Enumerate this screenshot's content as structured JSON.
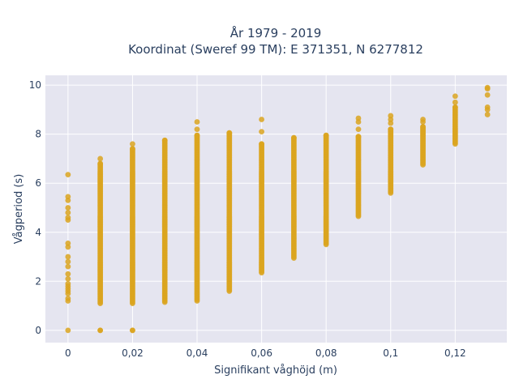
{
  "chart_data": {
    "type": "scatter",
    "title_line1": "År 1979 - 2019",
    "title_line2": "Koordinat (Sweref 99 TM): E 371351, N 6277812",
    "xlabel": "Signifikant våghöjd (m)",
    "ylabel": "Vågperiod (s)",
    "xlim": [
      -0.007,
      0.136
    ],
    "ylim": [
      -0.5,
      10.4
    ],
    "xticks": [
      0,
      0.02,
      0.04,
      0.06,
      0.08,
      0.1,
      0.12
    ],
    "xtick_labels": [
      "0",
      "0,02",
      "0,04",
      "0,06",
      "0,08",
      "0,1",
      "0,12"
    ],
    "yticks": [
      0,
      2,
      4,
      6,
      8,
      10
    ],
    "ytick_labels": [
      "0",
      "2",
      "4",
      "6",
      "8",
      "10"
    ],
    "grid": true,
    "background": "#e5e5f0",
    "marker_color": "#daa520",
    "columns": [
      {
        "x": 0,
        "band": [],
        "points": [
          0,
          1.2,
          1.3,
          1.5,
          1.6,
          1.7,
          1.8,
          1.9,
          2.1,
          2.3,
          2.6,
          2.8,
          3.0,
          3.4,
          3.55,
          4.5,
          4.6,
          4.8,
          5.0,
          5.3,
          5.45,
          6.35
        ]
      },
      {
        "x": 0.01,
        "band": [
          1.1,
          6.8
        ],
        "points": [
          0,
          0,
          7.0
        ]
      },
      {
        "x": 0.02,
        "band": [
          1.1,
          7.4
        ],
        "points": [
          0,
          0,
          7.6
        ]
      },
      {
        "x": 0.03,
        "band": [
          1.15,
          7.75
        ],
        "points": []
      },
      {
        "x": 0.04,
        "band": [
          1.2,
          7.95
        ],
        "points": [
          8.2,
          8.5
        ]
      },
      {
        "x": 0.05,
        "band": [
          1.6,
          8.05
        ],
        "points": []
      },
      {
        "x": 0.06,
        "band": [
          2.35,
          7.6
        ],
        "points": [
          8.1,
          8.6
        ]
      },
      {
        "x": 0.07,
        "band": [
          2.95,
          7.85
        ],
        "points": []
      },
      {
        "x": 0.08,
        "band": [
          3.5,
          7.95
        ],
        "points": []
      },
      {
        "x": 0.09,
        "band": [
          4.65,
          7.9
        ],
        "points": [
          8.2,
          8.5,
          8.65
        ]
      },
      {
        "x": 0.1,
        "band": [
          5.6,
          8.2
        ],
        "points": [
          8.45,
          8.6,
          8.75
        ]
      },
      {
        "x": 0.11,
        "band": [
          6.75,
          8.3
        ],
        "points": [
          8.5,
          8.6
        ]
      },
      {
        "x": 0.12,
        "band": [
          7.6,
          9.1
        ],
        "points": [
          9.3,
          9.55
        ]
      },
      {
        "x": 0.13,
        "band": [],
        "points": [
          8.8,
          9.0,
          9.1,
          9.6,
          9.85,
          9.9
        ]
      }
    ]
  }
}
